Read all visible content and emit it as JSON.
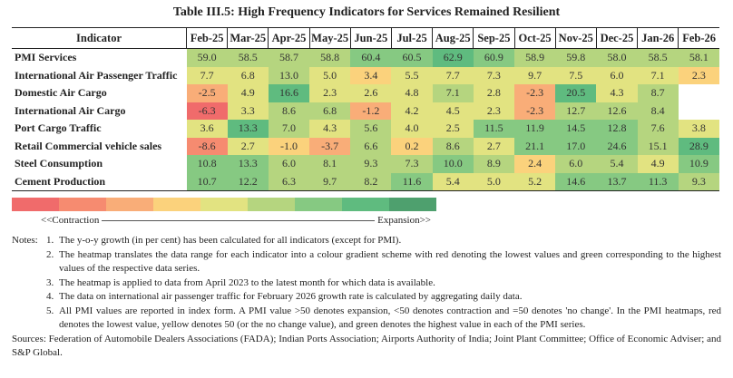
{
  "title": "Table III.5: High Frequency Indicators for Services Remained Resilient",
  "palette": [
    "#f06b6b",
    "#f68b70",
    "#f9ad78",
    "#fbd27c",
    "#e2e381",
    "#b5d57f",
    "#86c982",
    "#5fbb7f",
    "#4ea06e"
  ],
  "header": {
    "indicator": "Indicator",
    "months": [
      "Feb-25",
      "Mar-25",
      "Apr-25",
      "May-25",
      "Jun-25",
      "Jul-25",
      "Aug-25",
      "Sep-25",
      "Oct-25",
      "Nov-25",
      "Dec-25",
      "Jan-26",
      "Feb-26"
    ]
  },
  "rows": [
    {
      "label": "PMI Services",
      "values": [
        "59.0",
        "58.5",
        "58.7",
        "58.8",
        "60.4",
        "60.5",
        "62.9",
        "60.9",
        "58.9",
        "59.8",
        "58.0",
        "58.5",
        "58.1"
      ],
      "levels": [
        5,
        5,
        5,
        5,
        6,
        6,
        7,
        6,
        5,
        5,
        5,
        5,
        5
      ]
    },
    {
      "label": "International Air Passenger Traffic",
      "values": [
        "7.7",
        "6.8",
        "13.0",
        "5.0",
        "3.4",
        "5.5",
        "7.7",
        "7.3",
        "9.7",
        "7.5",
        "6.0",
        "7.1",
        "2.3"
      ],
      "levels": [
        4,
        4,
        5,
        4,
        3,
        4,
        4,
        4,
        4,
        4,
        4,
        4,
        3
      ]
    },
    {
      "label": "Domestic Air Cargo",
      "values": [
        "-2.5",
        "4.9",
        "16.6",
        "2.3",
        "2.6",
        "4.8",
        "7.1",
        "2.8",
        "-2.3",
        "20.5",
        "4.3",
        "8.7",
        null
      ],
      "levels": [
        2,
        4,
        7,
        4,
        4,
        4,
        5,
        4,
        2,
        7,
        4,
        5,
        null
      ]
    },
    {
      "label": "International Air Cargo",
      "values": [
        "-6.3",
        "3.3",
        "8.6",
        "6.8",
        "-1.2",
        "4.2",
        "4.5",
        "2.3",
        "-2.3",
        "12.7",
        "12.6",
        "8.4",
        null
      ],
      "levels": [
        0,
        4,
        5,
        5,
        2,
        4,
        4,
        4,
        2,
        5,
        5,
        5,
        null
      ]
    },
    {
      "label": "Port Cargo Traffic",
      "values": [
        "3.6",
        "13.3",
        "7.0",
        "4.3",
        "5.6",
        "4.0",
        "2.5",
        "11.5",
        "11.9",
        "14.5",
        "12.8",
        "7.6",
        "3.8"
      ],
      "levels": [
        4,
        7,
        5,
        4,
        5,
        4,
        4,
        6,
        6,
        6,
        6,
        5,
        4
      ]
    },
    {
      "label": "Retail Commercial vehicle sales",
      "values": [
        "-8.6",
        "2.7",
        "-1.0",
        "-3.7",
        "6.6",
        "0.2",
        "8.6",
        "2.7",
        "21.1",
        "17.0",
        "24.6",
        "15.1",
        "28.9"
      ],
      "levels": [
        1,
        4,
        3,
        2,
        5,
        3,
        5,
        4,
        6,
        6,
        6,
        5,
        7
      ]
    },
    {
      "label": "Steel Consumption",
      "values": [
        "10.8",
        "13.3",
        "6.0",
        "8.1",
        "9.3",
        "7.3",
        "10.0",
        "8.9",
        "2.4",
        "6.0",
        "5.4",
        "4.9",
        "10.9"
      ],
      "levels": [
        6,
        6,
        5,
        5,
        5,
        5,
        6,
        5,
        3,
        5,
        5,
        4,
        6
      ]
    },
    {
      "label": "Cement Production",
      "values": [
        "10.7",
        "12.2",
        "6.3",
        "9.7",
        "8.2",
        "11.6",
        "5.4",
        "5.0",
        "5.2",
        "14.6",
        "13.7",
        "11.3",
        "9.3"
      ],
      "levels": [
        6,
        6,
        5,
        5,
        5,
        6,
        4,
        4,
        4,
        6,
        6,
        6,
        5
      ]
    }
  ],
  "legend": {
    "left": "<<Contraction",
    "right": "Expansion>>"
  },
  "notes": {
    "label": "Notes:",
    "items": [
      "The y-o-y growth (in per cent) has been calculated for all indicators (except for PMI).",
      "The heatmap translates the data range for each indicator into a colour gradient scheme with red denoting the lowest values and green corresponding to the highest values of the respective data series.",
      "The heatmap is applied to data from April 2023 to the latest month for which data is available.",
      "The data on international air passenger traffic for February 2026 growth rate is calculated by aggregating daily data.",
      "All PMI values are reported in index form. A PMI value >50 denotes expansion, <50 denotes contraction and =50 denotes 'no change'. In the PMI heatmaps, red denotes the lowest value, yellow denotes 50 (or the no change value), and green denotes the highest value in each of the PMI series."
    ]
  },
  "sources": "Sources: Federation of Automobile Dealers Associations (FADA); Indian Ports Association; Airports Authority of India; Joint Plant Committee; Office of Economic Adviser; and S&P Global."
}
